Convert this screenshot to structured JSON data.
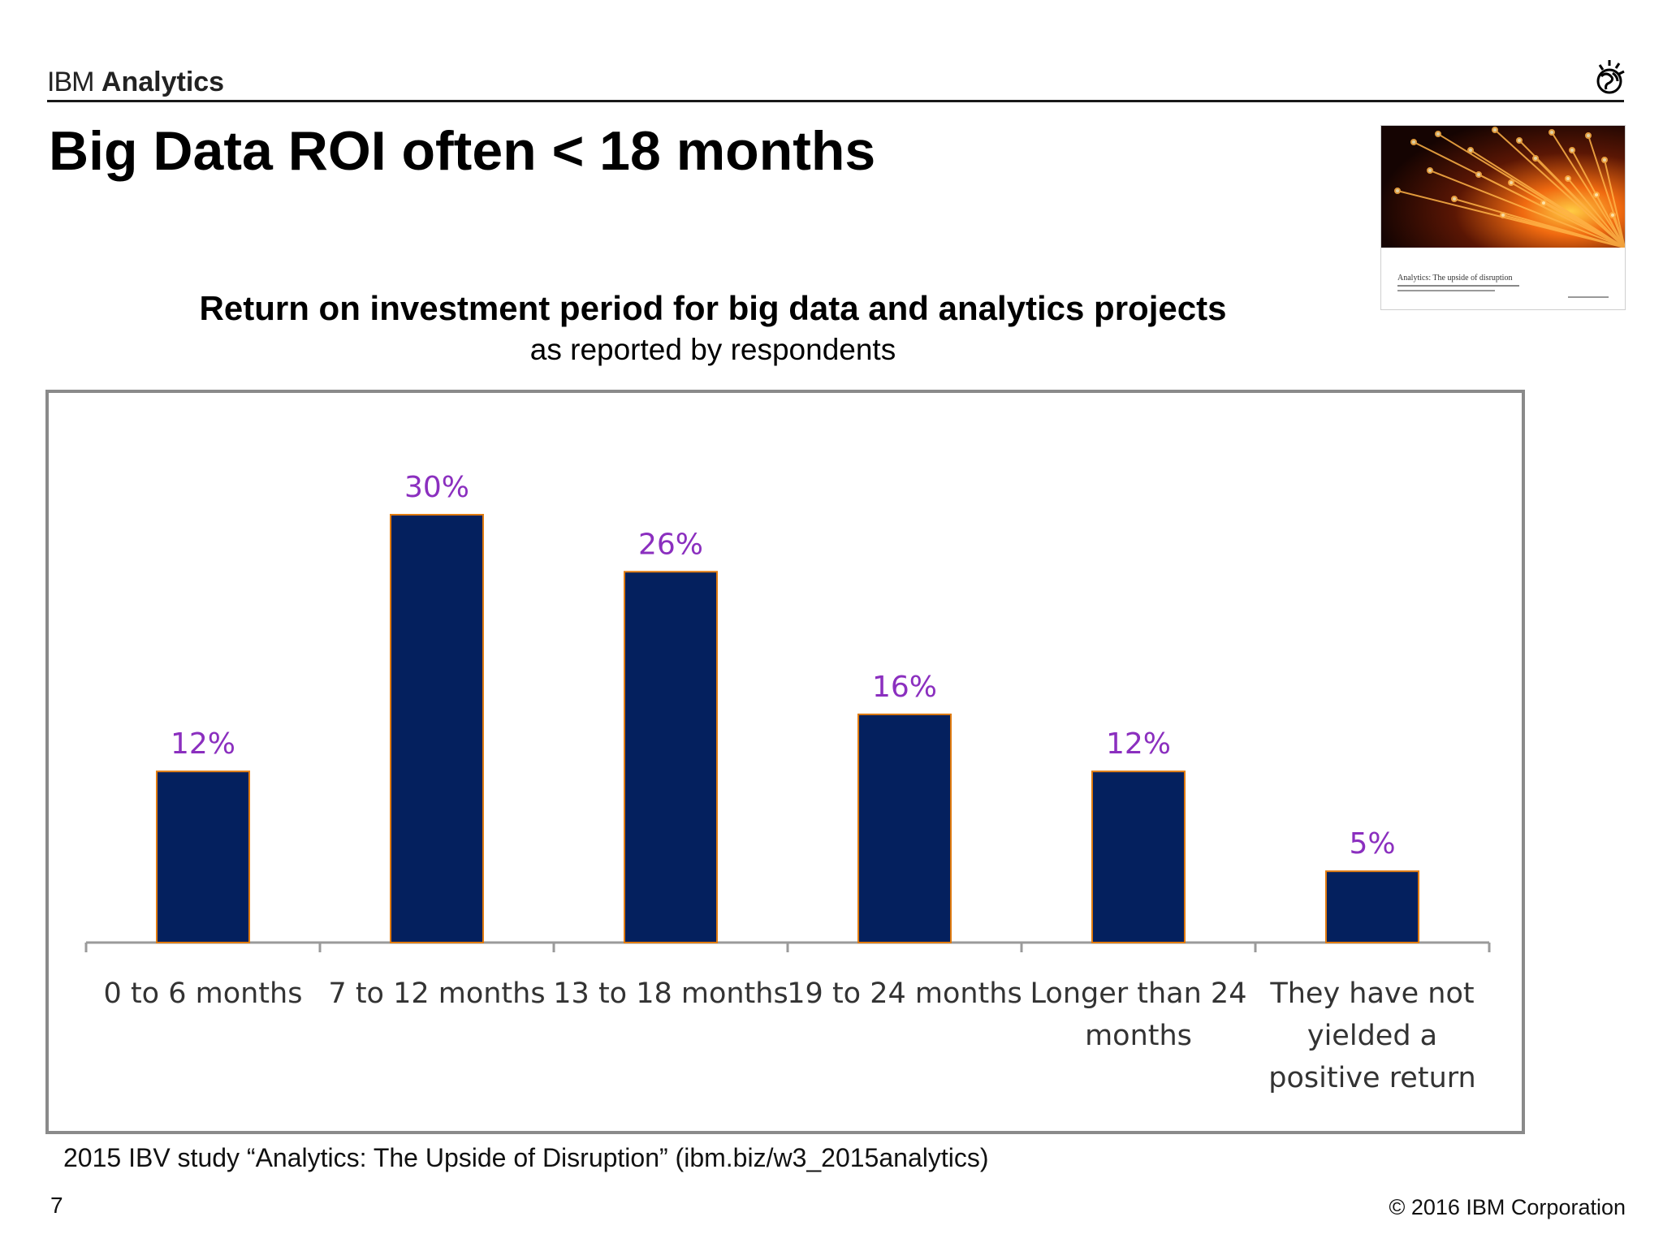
{
  "header": {
    "brand_light": "IBM",
    "brand_bold": "Analytics"
  },
  "logo": {
    "text": "IBM"
  },
  "slide": {
    "title": "Big Data ROI often < 18 months",
    "page_number": "7",
    "copyright": "© 2016 IBM Corporation",
    "source": "2015 IBV study  “Analytics:  The Upside of Disruption” (ibm.biz/w3_2015analytics)"
  },
  "thumbnail": {
    "caption": "Analytics: The upside of disruption"
  },
  "colors": {
    "bar_fill": "#04205e",
    "bar_outline": "#e07b10",
    "value_label": "#8b2fbf"
  },
  "chart_data": {
    "type": "bar",
    "title": "Return on investment period for big data and analytics projects",
    "subtitle": "as reported by respondents",
    "categories": [
      [
        "0 to 6 months"
      ],
      [
        "7 to 12 months"
      ],
      [
        "13 to 18 months"
      ],
      [
        "19 to 24 months"
      ],
      [
        "Longer than 24",
        "months"
      ],
      [
        "They have not",
        "yielded a",
        "positive return"
      ]
    ],
    "values": [
      12,
      30,
      26,
      16,
      12,
      5
    ],
    "value_labels": [
      "12%",
      "30%",
      "26%",
      "16%",
      "12%",
      "5%"
    ],
    "ylim": [
      0,
      30
    ],
    "grid": false,
    "legend": "none"
  }
}
